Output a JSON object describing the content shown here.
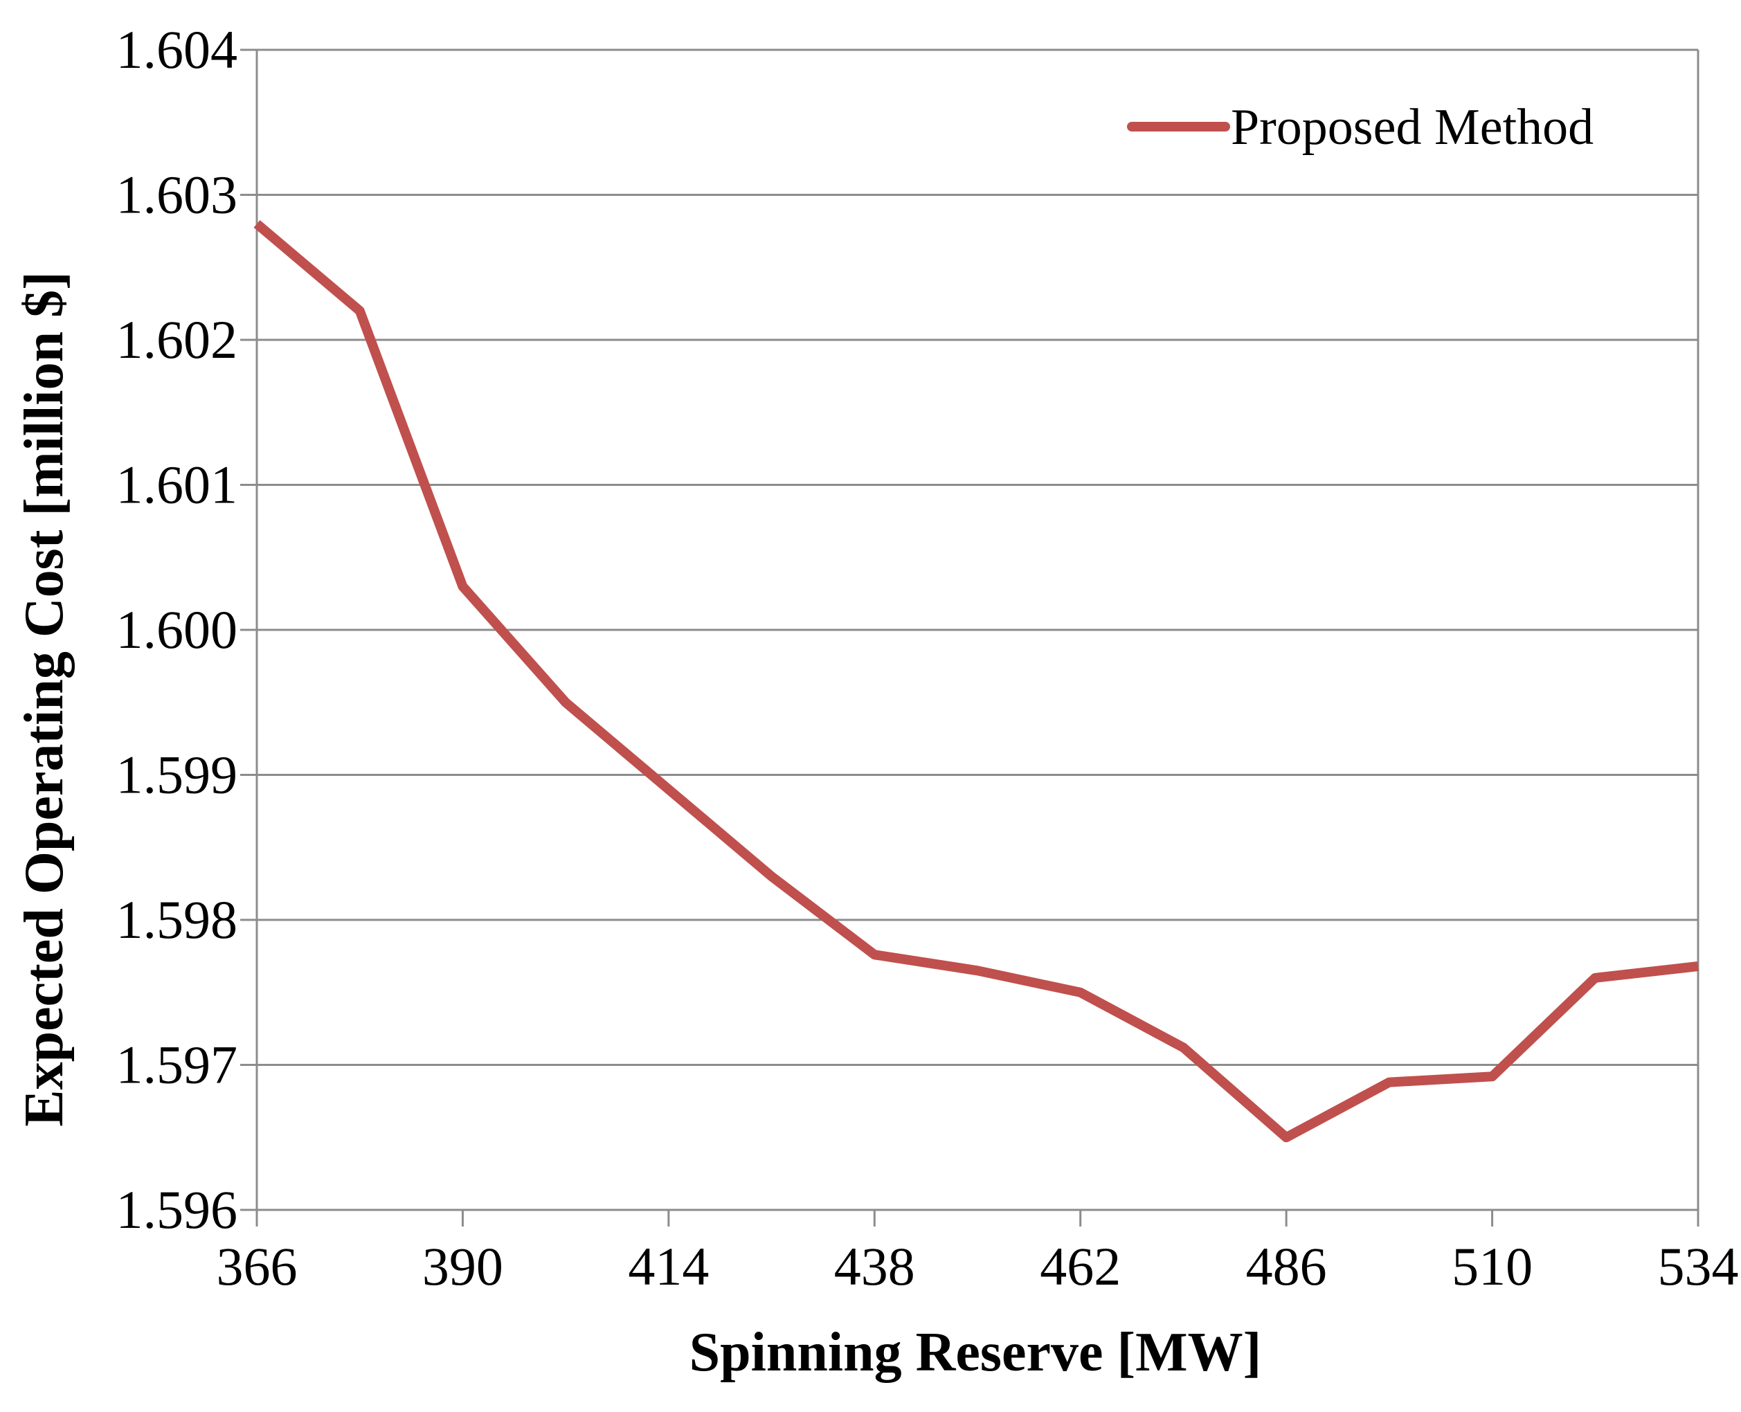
{
  "chart_data": {
    "type": "line",
    "title": "",
    "xlabel": "Spinning Reserve [MW]",
    "ylabel": "Expected Operating Cost [million $]",
    "xlim": [
      366,
      534
    ],
    "ylim": [
      1.596,
      1.604
    ],
    "xticks": [
      366,
      390,
      414,
      438,
      462,
      486,
      510,
      534
    ],
    "xtick_labels": [
      "366",
      "390",
      "414",
      "438",
      "462",
      "486",
      "510",
      "534"
    ],
    "yticks": [
      1.596,
      1.597,
      1.598,
      1.599,
      1.6,
      1.601,
      1.602,
      1.603,
      1.604
    ],
    "ytick_labels": [
      "1.596",
      "1.597",
      "1.598",
      "1.599",
      "1.600",
      "1.601",
      "1.602",
      "1.603",
      "1.604"
    ],
    "grid": true,
    "legend_position": "top-right",
    "series": [
      {
        "name": "Proposed Method",
        "color": "#C0504D",
        "x": [
          366,
          378,
          390,
          402,
          414,
          426,
          438,
          450,
          462,
          474,
          486,
          498,
          510,
          522,
          534
        ],
        "y": [
          1.6028,
          1.6022,
          1.6003,
          1.5995,
          1.5989,
          1.5983,
          1.59776,
          1.59765,
          1.5975,
          1.59712,
          1.5965,
          1.59688,
          1.59692,
          1.5976,
          1.59768
        ]
      }
    ]
  }
}
